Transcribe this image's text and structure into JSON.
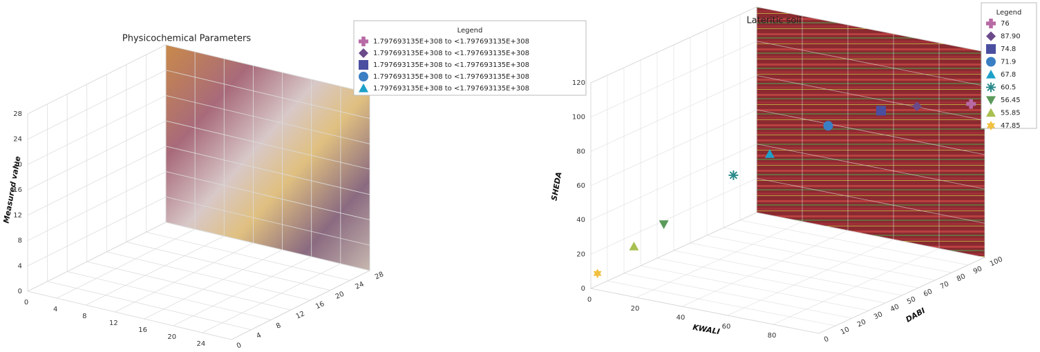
{
  "chart_data": [
    {
      "type": "scatter3d",
      "title": "Physicochemical Parameters",
      "ylabel": "Measured value",
      "xlim": [
        0,
        28
      ],
      "ylim": [
        0,
        28
      ],
      "zlim": [
        0,
        28
      ],
      "xticks": [
        0,
        4,
        8,
        12,
        16,
        20,
        24
      ],
      "yticks": [
        0,
        4,
        8,
        12,
        16,
        20,
        24,
        28
      ],
      "zticks": [
        0,
        4,
        8,
        12,
        16,
        20,
        24,
        28
      ],
      "grid": true,
      "legend_title": "Legend",
      "series": [
        {
          "name": "1.797693135E+308 to <1.797693135E+308",
          "color": "#b86aa6",
          "marker": "plus"
        },
        {
          "name": "1.797693135E+308 to <1.797693135E+308",
          "color": "#6b4a8a",
          "marker": "diamond"
        },
        {
          "name": "1.797693135E+308 to <1.797693135E+308",
          "color": "#4b4fa0",
          "marker": "square"
        },
        {
          "name": "1.797693135E+308 to <1.797693135E+308",
          "color": "#3a7fc4",
          "marker": "circle"
        },
        {
          "name": "1.797693135E+308 to <1.797693135E+308",
          "color": "#1ea0c8",
          "marker": "triangle"
        }
      ]
    },
    {
      "type": "scatter3d",
      "title": "Lateritic soil",
      "xlabel": "KWALI",
      "ylabel": "SHEDA",
      "zlabel": "DABI",
      "xlim": [
        0,
        100
      ],
      "ylim": [
        0,
        120
      ],
      "zlim": [
        0,
        100
      ],
      "xticks": [
        0,
        20,
        40,
        60,
        80
      ],
      "yticks": [
        0,
        20,
        40,
        60,
        80,
        100,
        120
      ],
      "zticks": [
        0,
        10,
        20,
        30,
        40,
        50,
        60,
        70,
        80,
        90,
        100
      ],
      "grid": true,
      "legend_title": "Legend",
      "series": [
        {
          "name": "76",
          "color": "#b86aa6",
          "marker": "plus",
          "x": [
            94
          ],
          "y": [
            88
          ],
          "z": [
            100
          ]
        },
        {
          "name": "87.90",
          "color": "#6b4a8a",
          "marker": "diamond",
          "x": [
            71
          ],
          "y": [
            81
          ],
          "z": [
            99
          ]
        },
        {
          "name": "74.8",
          "color": "#4b4fa0",
          "marker": "square",
          "x": [
            56
          ],
          "y": [
            75
          ],
          "z": [
            98
          ]
        },
        {
          "name": "71.9",
          "color": "#3a7fc4",
          "marker": "circle",
          "x": [
            35
          ],
          "y": [
            62
          ],
          "z": [
            95
          ]
        },
        {
          "name": "67.8",
          "color": "#1ea0c8",
          "marker": "triangle",
          "x": [
            13
          ],
          "y": [
            42
          ],
          "z": [
            90
          ]
        },
        {
          "name": "60.5",
          "color": "#2a8a8a",
          "marker": "asterisk",
          "x": [
            0
          ],
          "y": [
            28
          ],
          "z": [
            86
          ]
        },
        {
          "name": "56.45",
          "color": "#5a9a5a",
          "marker": "triangle-down",
          "x": [
            0
          ],
          "y": [
            18
          ],
          "z": [
            44
          ]
        },
        {
          "name": "55.85",
          "color": "#a8c050",
          "marker": "triangle",
          "x": [
            0
          ],
          "y": [
            13
          ],
          "z": [
            26
          ]
        },
        {
          "name": "47.85",
          "color": "#f0c040",
          "marker": "star",
          "x": [
            0
          ],
          "y": [
            7
          ],
          "z": [
            4
          ]
        }
      ]
    }
  ]
}
